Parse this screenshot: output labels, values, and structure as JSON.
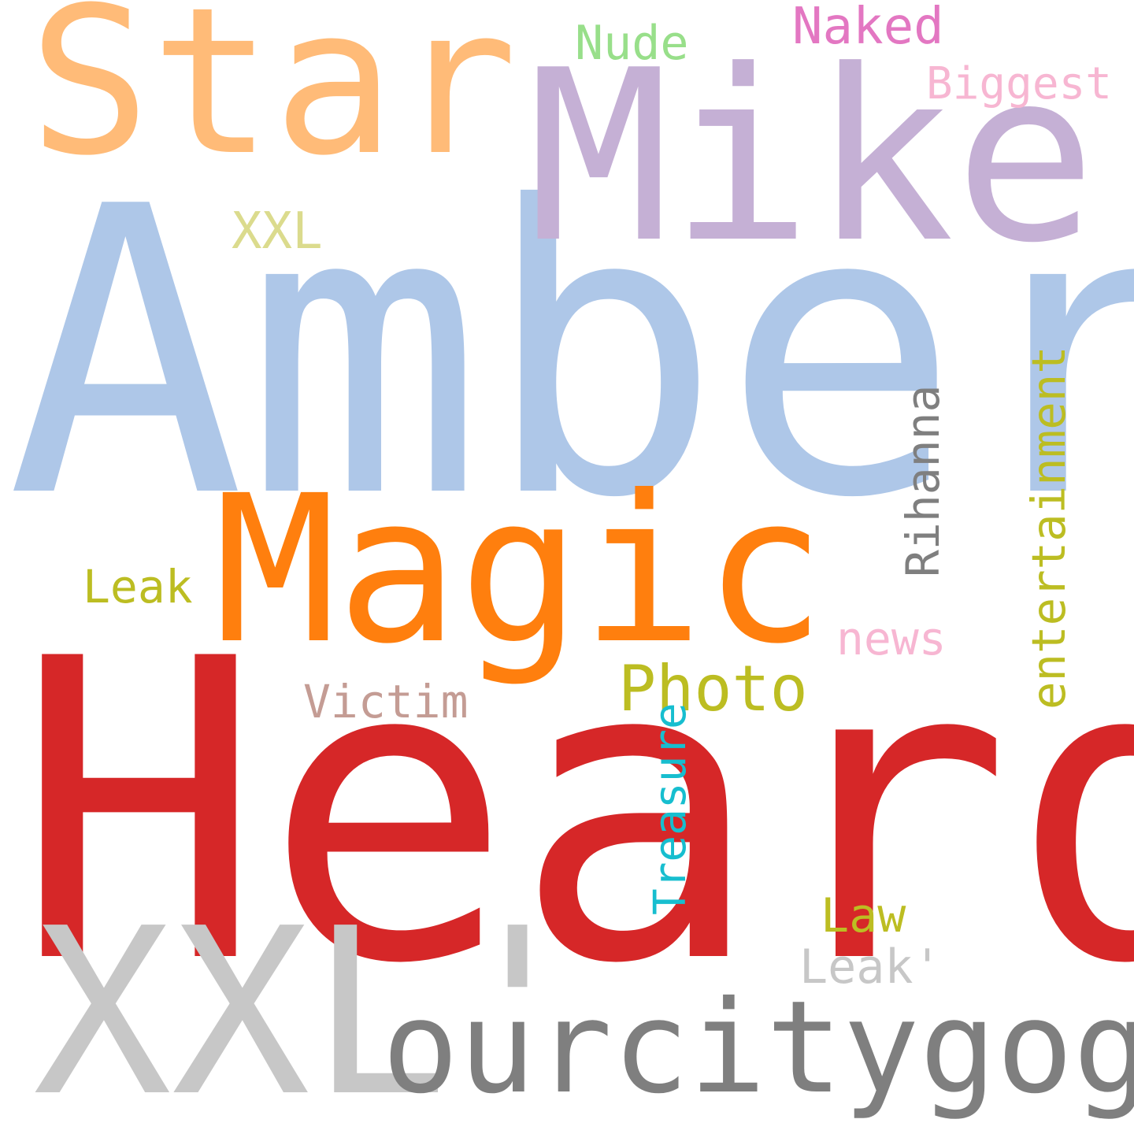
{
  "words": [
    {
      "id": "amber",
      "text": "Amber",
      "color": "#aec7e8"
    },
    {
      "id": "heard",
      "text": "Heard",
      "color": "#d62728"
    },
    {
      "id": "xxl_quote",
      "text": "XXL'",
      "color": "#c7c7c7"
    },
    {
      "id": "ourcitygogo",
      "text": "ourcitygogo",
      "color": "#7f7f7f"
    },
    {
      "id": "mike",
      "text": "Mike",
      "color": "#c5b0d5"
    },
    {
      "id": "star",
      "text": "Star",
      "color": "#ffbb78"
    },
    {
      "id": "magic",
      "text": "Magic",
      "color": "#ff7f0e"
    },
    {
      "id": "photo",
      "text": "Photo",
      "color": "#bcbd22"
    },
    {
      "id": "victim",
      "text": "Victim",
      "color": "#c49c94"
    },
    {
      "id": "leak",
      "text": "Leak",
      "color": "#bcbd22"
    },
    {
      "id": "news",
      "text": "news",
      "color": "#f7b6d2"
    },
    {
      "id": "law",
      "text": "Law",
      "color": "#bcbd22"
    },
    {
      "id": "leak_quote",
      "text": "Leak'",
      "color": "#c7c7c7"
    },
    {
      "id": "xxl_small",
      "text": "XXL",
      "color": "#dbdb8d"
    },
    {
      "id": "nude",
      "text": "Nude",
      "color": "#98df8a"
    },
    {
      "id": "naked",
      "text": "Naked",
      "color": "#e377c2"
    },
    {
      "id": "biggest",
      "text": "Biggest",
      "color": "#f7b6d2"
    },
    {
      "id": "rihanna",
      "text": "Rihanna",
      "color": "#7f7f7f"
    },
    {
      "id": "entertainment",
      "text": "entertainment",
      "color": "#bcbd22"
    },
    {
      "id": "treasure",
      "text": "Treasure",
      "color": "#17becf"
    }
  ]
}
